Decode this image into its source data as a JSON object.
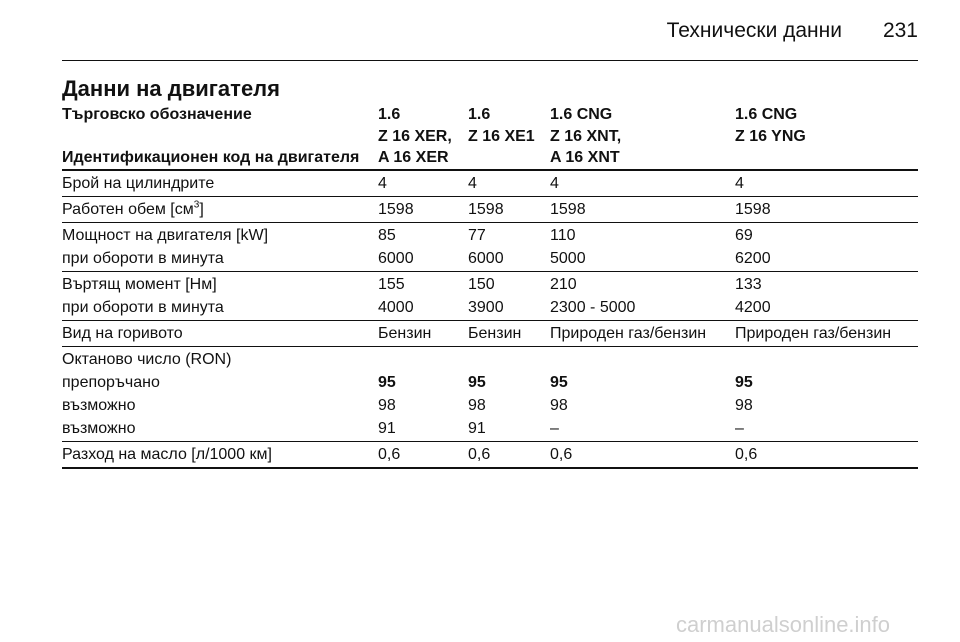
{
  "header": {
    "title": "Технически данни",
    "page": "231"
  },
  "section_title": "Данни на двигателя",
  "table": {
    "label_top": "Търговско обозначение",
    "label_bottom": "Идентификационен код на двигателя",
    "columns": [
      [
        "1.6",
        "Z 16 XER,",
        "A 16 XER"
      ],
      [
        "1.6",
        "Z 16 XE1"
      ],
      [
        "1.6 CNG",
        "Z 16 XNT,",
        "A 16 XNT"
      ],
      [
        "1.6 CNG",
        "Z 16 YNG"
      ]
    ],
    "groups": [
      [
        {
          "label": "Брой на цилиндрите",
          "values": [
            "4",
            "4",
            "4",
            "4"
          ]
        }
      ],
      [
        {
          "label": "Работен обем [см",
          "label_sup": "3",
          "label_tail": "]",
          "values": [
            "1598",
            "1598",
            "1598",
            "1598"
          ]
        }
      ],
      [
        {
          "label": "Мощност на двигателя [kW]",
          "values": [
            "85",
            "77",
            "110",
            "69"
          ]
        },
        {
          "label": "при обороти в минута",
          "values": [
            "6000",
            "6000",
            "5000",
            "6200"
          ]
        }
      ],
      [
        {
          "label": "Въртящ момент [Нм]",
          "values": [
            "155",
            "150",
            "210",
            "133"
          ]
        },
        {
          "label": "при обороти в минута",
          "values": [
            "4000",
            "3900",
            "2300 - 5000",
            "4200"
          ]
        }
      ],
      [
        {
          "label": "Вид на горивото",
          "values": [
            "Бензин",
            "Бензин",
            "Природен газ/бензин",
            "Природен газ/бензин"
          ]
        }
      ],
      [
        {
          "label": "Октаново число (RON)",
          "values": []
        },
        {
          "label": "препоръчано",
          "values": [
            "95",
            "95",
            "95",
            "95"
          ],
          "bold": true
        },
        {
          "label": "възможно",
          "values": [
            "98",
            "98",
            "98",
            "98"
          ]
        },
        {
          "label": "възможно",
          "values": [
            "91",
            "91",
            "–",
            "–"
          ]
        }
      ],
      [
        {
          "label": "Разход на масло [л/1000 км]",
          "values": [
            "0,6",
            "0,6",
            "0,6",
            "0,6"
          ]
        }
      ]
    ]
  },
  "watermark": "carmanualsonline.info"
}
